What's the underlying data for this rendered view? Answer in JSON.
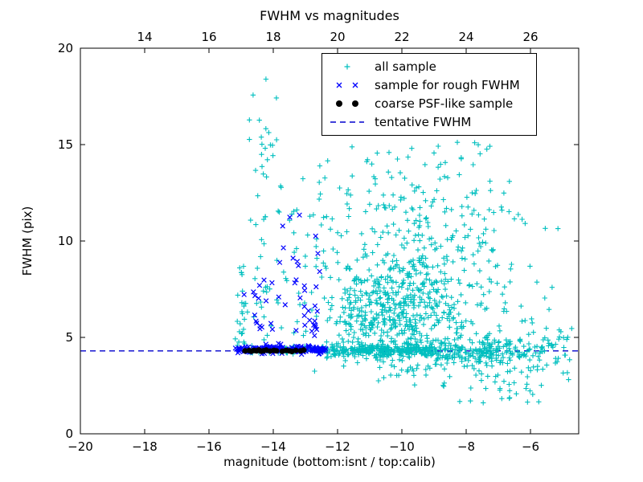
{
  "chart_data": {
    "type": "scatter",
    "title": "FWHM vs magnitudes",
    "xlabel": "magnitude (bottom:isnt / top:calib)",
    "ylabel": "FWHM (pix)",
    "xlim": [
      -20,
      -4.5
    ],
    "ylim": [
      0,
      20
    ],
    "grid": false,
    "legend_position": "upper right inside",
    "seed": 7,
    "top_axis_offset": 32.0,
    "x_ticks": [
      {
        "v": -20,
        "label": "−20"
      },
      {
        "v": -18,
        "label": "−18"
      },
      {
        "v": -16,
        "label": "−16"
      },
      {
        "v": -14,
        "label": "−14"
      },
      {
        "v": -12,
        "label": "−12"
      },
      {
        "v": -10,
        "label": "−10"
      },
      {
        "v": -8,
        "label": "−8"
      },
      {
        "v": -6,
        "label": "−6"
      }
    ],
    "top_ticks": [
      {
        "v": 14,
        "label": "14"
      },
      {
        "v": 16,
        "label": "16"
      },
      {
        "v": 18,
        "label": "18"
      },
      {
        "v": 20,
        "label": "20"
      },
      {
        "v": 22,
        "label": "22"
      },
      {
        "v": 24,
        "label": "24"
      },
      {
        "v": 26,
        "label": "26"
      }
    ],
    "y_ticks": [
      {
        "v": 0,
        "label": "0"
      },
      {
        "v": 5,
        "label": "5"
      },
      {
        "v": 10,
        "label": "10"
      },
      {
        "v": 15,
        "label": "15"
      },
      {
        "v": 20,
        "label": "20"
      }
    ],
    "tentative_fwhm": {
      "label": "tentative FWHM",
      "y": 4.3,
      "color": "#0000cd"
    },
    "series": [
      {
        "name": "all sample",
        "marker": "plus",
        "color": "#00bfbf",
        "clusters": [
          {
            "n": 80,
            "x": [
              "uniform",
              -15.15,
              -12.35
            ],
            "y": [
              "normal",
              4.35,
              0.1
            ]
          },
          {
            "n": 260,
            "x": [
              "uniform",
              -12.35,
              -9.0
            ],
            "y": [
              "normal",
              4.33,
              0.16
            ]
          },
          {
            "n": 200,
            "x": [
              "uniform",
              -9.0,
              -6.3
            ],
            "y": [
              "normal",
              4.25,
              0.38
            ]
          },
          {
            "n": 70,
            "x": [
              "uniform",
              -6.3,
              -4.7
            ],
            "y": [
              "normal",
              4.15,
              0.7
            ]
          },
          {
            "n": 420,
            "x": [
              "normal",
              -10.2,
              1.0
            ],
            "y": [
              "normal",
              6.0,
              1.5
            ],
            "ymin": 2.5,
            "ymax": 12.0
          },
          {
            "n": 300,
            "x": [
              "normal",
              -9.0,
              1.2
            ],
            "y": [
              "normal",
              8.5,
              2.4
            ],
            "ymin": 2.5,
            "ymax": 15.5
          },
          {
            "n": 25,
            "x": [
              "normal",
              -14.97,
              0.1
            ],
            "y": [
              "uniform",
              4.6,
              8.8
            ]
          },
          {
            "n": 45,
            "x": [
              "normal",
              -14.35,
              0.22
            ],
            "y": [
              "uniform",
              4.8,
              19.5
            ]
          },
          {
            "n": 70,
            "x": [
              "uniform",
              -13.9,
              -11.6
            ],
            "y": [
              "uniform",
              4.8,
              14.5
            ]
          },
          {
            "n": 45,
            "x": [
              "uniform",
              -11.6,
              -7.2
            ],
            "y": [
              "uniform",
              11.5,
              15.2
            ]
          },
          {
            "n": 35,
            "x": [
              "uniform",
              -9.2,
              -5.4
            ],
            "y": [
              "uniform",
              1.6,
              3.4
            ]
          },
          {
            "n": 14,
            "x": [
              "uniform",
              -7.5,
              -5.0
            ],
            "y": [
              "uniform",
              5.5,
              12.0
            ]
          }
        ]
      },
      {
        "name": "sample for rough FWHM",
        "marker": "cross",
        "color": "#0000ff",
        "clusters": [
          {
            "n": 150,
            "x": [
              "uniform",
              -15.2,
              -12.35
            ],
            "y": [
              "normal",
              4.38,
              0.1
            ]
          },
          {
            "n": 16,
            "x": [
              "normal",
              -14.4,
              0.22
            ],
            "y": [
              "uniform",
              5.2,
              8.6
            ]
          },
          {
            "n": 14,
            "x": [
              "normal",
              -13.45,
              0.28
            ],
            "y": [
              "uniform",
              6.5,
              11.4
            ]
          },
          {
            "n": 12,
            "x": [
              "normal",
              -12.62,
              0.12
            ],
            "y": [
              "uniform",
              5.0,
              11.0
            ]
          },
          {
            "n": 8,
            "x": [
              "normal",
              -12.95,
              0.2
            ],
            "y": [
              "uniform",
              5.2,
              7.5
            ]
          }
        ]
      },
      {
        "name": "coarse PSF-like sample",
        "marker": "dot",
        "color": "#000000",
        "points": [
          [
            -14.88,
            4.3
          ],
          [
            -14.75,
            4.32
          ],
          [
            -14.68,
            4.28
          ],
          [
            -14.6,
            4.33
          ],
          [
            -14.52,
            4.3
          ],
          [
            -14.45,
            4.35
          ],
          [
            -14.38,
            4.28
          ],
          [
            -14.3,
            4.31
          ],
          [
            -14.22,
            4.34
          ],
          [
            -14.1,
            4.29
          ],
          [
            -13.98,
            4.33
          ],
          [
            -13.9,
            4.3
          ],
          [
            -13.72,
            4.28
          ],
          [
            -13.6,
            4.33
          ],
          [
            -13.5,
            4.3
          ],
          [
            -13.42,
            4.27
          ],
          [
            -13.3,
            4.32
          ],
          [
            -13.15,
            4.3
          ],
          [
            -13.05,
            4.34
          ]
        ]
      }
    ],
    "legend": {
      "entries": [
        {
          "label": "all sample",
          "marker": "plus",
          "color": "#00bfbf",
          "npoints": 1
        },
        {
          "label": "sample for rough FWHM",
          "marker": "cross",
          "color": "#0000ff",
          "npoints": 2
        },
        {
          "label": "coarse PSF-like sample",
          "marker": "dot",
          "color": "#000000",
          "npoints": 2
        },
        {
          "label": "tentative FWHM",
          "marker": "dashed",
          "color": "#0000cd",
          "npoints": 0
        }
      ]
    }
  }
}
